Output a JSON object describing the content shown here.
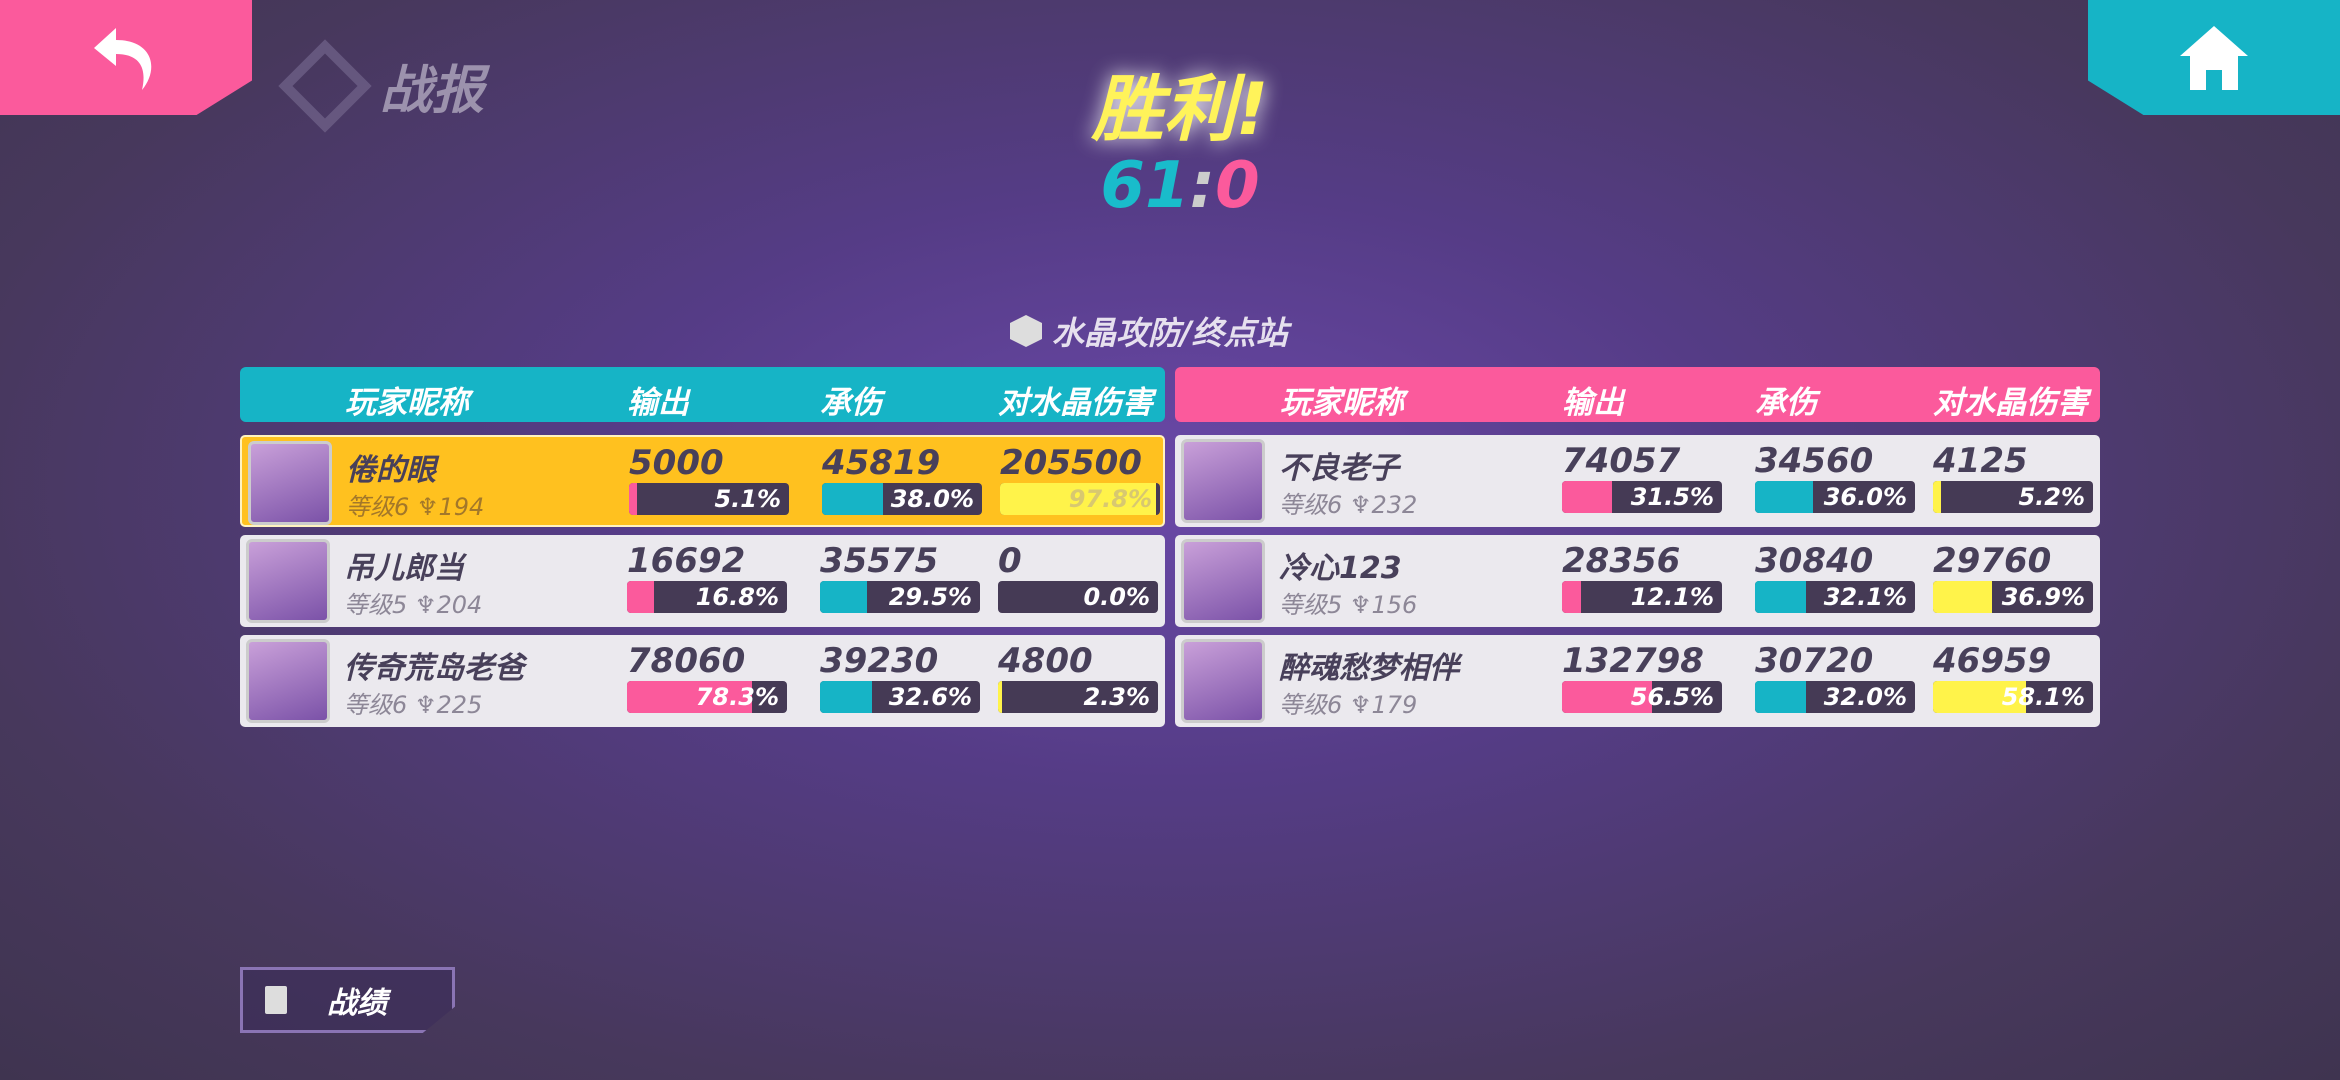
{
  "header": {
    "title": "战报",
    "victory": "胜利!",
    "score_left": "61",
    "score_sep": ":",
    "score_right": "0",
    "mode": "水晶攻防/终点站"
  },
  "buttons": {
    "back": "back-arrow-icon",
    "home": "home-icon",
    "record": "战绩"
  },
  "columns": [
    "玩家昵称",
    "输出",
    "承伤",
    "对水晶伤害"
  ],
  "colors": {
    "blue_team": "#16b4c6",
    "red_team": "#fb5a9c",
    "output": "#fb5a9c",
    "taken": "#16b4c6",
    "crystal": "#fff34a",
    "highlight": "#ffc11f"
  },
  "teams": [
    {
      "side": "blue",
      "players": [
        {
          "name": "倦的眼",
          "level": "等级6",
          "trophy": "194",
          "output": "5000",
          "output_pct": "5.1%",
          "taken": "45819",
          "taken_pct": "38.0%",
          "crystal": "205500",
          "crystal_pct": "97.8%",
          "self": true
        },
        {
          "name": "吊儿郎当",
          "level": "等级5",
          "trophy": "204",
          "output": "16692",
          "output_pct": "16.8%",
          "taken": "35575",
          "taken_pct": "29.5%",
          "crystal": "0",
          "crystal_pct": "0.0%"
        },
        {
          "name": "传奇荒岛老爸",
          "level": "等级6",
          "trophy": "225",
          "output": "78060",
          "output_pct": "78.3%",
          "taken": "39230",
          "taken_pct": "32.6%",
          "crystal": "4800",
          "crystal_pct": "2.3%"
        }
      ]
    },
    {
      "side": "red",
      "players": [
        {
          "name": "不良老子",
          "level": "等级6",
          "trophy": "232",
          "output": "74057",
          "output_pct": "31.5%",
          "taken": "34560",
          "taken_pct": "36.0%",
          "crystal": "4125",
          "crystal_pct": "5.2%"
        },
        {
          "name": "冷心123",
          "level": "等级5",
          "trophy": "156",
          "output": "28356",
          "output_pct": "12.1%",
          "taken": "30840",
          "taken_pct": "32.1%",
          "crystal": "29760",
          "crystal_pct": "36.9%"
        },
        {
          "name": "醉魂愁梦相伴",
          "level": "等级6",
          "trophy": "179",
          "output": "132798",
          "output_pct": "56.5%",
          "taken": "30720",
          "taken_pct": "32.0%",
          "crystal": "46959",
          "crystal_pct": "58.1%"
        }
      ]
    }
  ]
}
